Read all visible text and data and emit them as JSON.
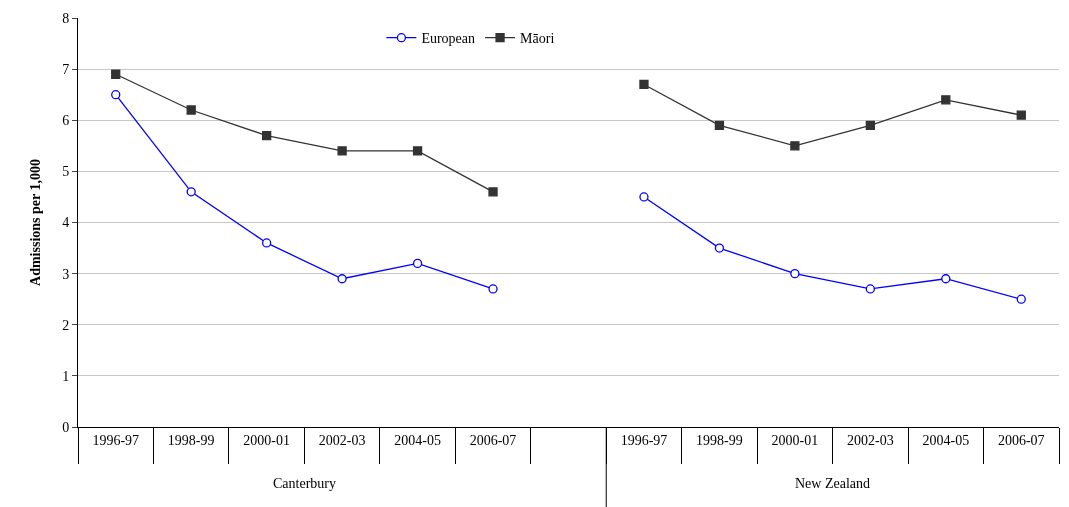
{
  "chart_data": {
    "type": "line",
    "ylabel": "Admissions per 1,000",
    "categories": [
      "1996-97",
      "1998-99",
      "2000-01",
      "2002-03",
      "2004-05",
      "2006-07",
      null,
      "1996-97",
      "1998-99",
      "2000-01",
      "2002-03",
      "2004-05",
      "2006-07"
    ],
    "series": [
      {
        "name": "European",
        "color": "#0000ff",
        "marker": "circle",
        "values": [
          6.5,
          4.6,
          3.6,
          2.9,
          3.2,
          2.7,
          null,
          4.5,
          3.5,
          3.0,
          2.7,
          2.9,
          2.5
        ]
      },
      {
        "name": "Māori",
        "color": "#333333",
        "marker": "square",
        "values": [
          6.9,
          6.2,
          5.7,
          5.4,
          5.4,
          4.6,
          null,
          6.7,
          5.9,
          5.5,
          5.9,
          6.4,
          6.1
        ]
      }
    ],
    "annotations": [
      "Canterbury",
      "New Zealand"
    ],
    "ylim": [
      0,
      8
    ],
    "yticks": [
      0,
      1,
      2,
      3,
      4,
      5,
      6,
      7,
      8
    ],
    "grid": "y",
    "legend": "top",
    "line_style": "solid"
  }
}
